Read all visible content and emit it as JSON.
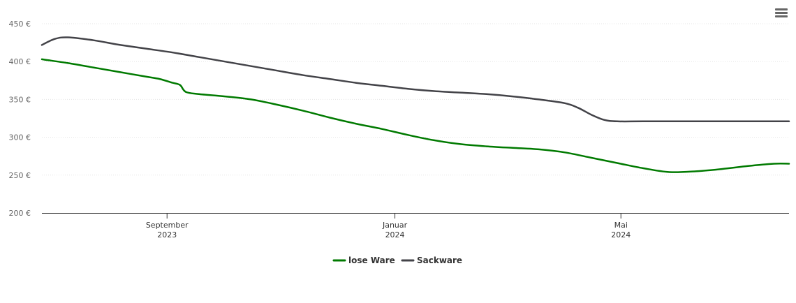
{
  "chart_data": {
    "type": "line",
    "title": "",
    "xlabel": "",
    "ylabel": "",
    "ylim": [
      200,
      450
    ],
    "y_ticks": [
      "200 €",
      "250 €",
      "300 €",
      "350 €",
      "400 €",
      "450 €"
    ],
    "y_tick_values": [
      200,
      250,
      300,
      350,
      400,
      450
    ],
    "x_range": [
      "2023-06-26",
      "2024-07-30"
    ],
    "x_ticks": [
      {
        "date": "2023-09-01",
        "line1": "September",
        "line2": "2023"
      },
      {
        "date": "2024-01-01",
        "line1": "Januar",
        "line2": "2024"
      },
      {
        "date": "2024-05-01",
        "line1": "Mai",
        "line2": "2024"
      }
    ],
    "grid": true,
    "legend_position": "bottom-center",
    "series": [
      {
        "name": "lose Ware",
        "color": "#007a00",
        "points": [
          [
            "2023-06-26",
            403
          ],
          [
            "2023-07-10",
            398
          ],
          [
            "2023-07-24",
            392
          ],
          [
            "2023-08-07",
            386
          ],
          [
            "2023-08-21",
            380
          ],
          [
            "2023-08-28",
            377
          ],
          [
            "2023-09-04",
            372
          ],
          [
            "2023-09-08",
            369
          ],
          [
            "2023-09-11",
            360
          ],
          [
            "2023-09-18",
            357
          ],
          [
            "2023-10-02",
            354
          ],
          [
            "2023-10-16",
            350
          ],
          [
            "2023-10-30",
            343
          ],
          [
            "2023-11-13",
            335
          ],
          [
            "2023-11-27",
            326
          ],
          [
            "2023-12-11",
            318
          ],
          [
            "2023-12-25",
            311
          ],
          [
            "2024-01-08",
            303
          ],
          [
            "2024-01-22",
            296
          ],
          [
            "2024-02-05",
            291
          ],
          [
            "2024-02-19",
            288
          ],
          [
            "2024-03-04",
            286
          ],
          [
            "2024-03-18",
            284
          ],
          [
            "2024-04-01",
            280
          ],
          [
            "2024-04-15",
            273
          ],
          [
            "2024-04-29",
            266
          ],
          [
            "2024-05-13",
            259
          ],
          [
            "2024-05-27",
            254
          ],
          [
            "2024-06-10",
            255
          ],
          [
            "2024-06-24",
            258
          ],
          [
            "2024-07-08",
            262
          ],
          [
            "2024-07-22",
            265
          ],
          [
            "2024-07-30",
            265
          ]
        ]
      },
      {
        "name": "Sackware",
        "color": "#434348",
        "points": [
          [
            "2023-06-26",
            422
          ],
          [
            "2023-07-03",
            430
          ],
          [
            "2023-07-10",
            432
          ],
          [
            "2023-07-24",
            428
          ],
          [
            "2023-08-07",
            422
          ],
          [
            "2023-08-21",
            417
          ],
          [
            "2023-09-04",
            412
          ],
          [
            "2023-09-18",
            406
          ],
          [
            "2023-10-02",
            400
          ],
          [
            "2023-10-16",
            394
          ],
          [
            "2023-10-30",
            388
          ],
          [
            "2023-11-13",
            382
          ],
          [
            "2023-11-27",
            377
          ],
          [
            "2023-12-11",
            372
          ],
          [
            "2023-12-25",
            368
          ],
          [
            "2024-01-08",
            364
          ],
          [
            "2024-01-22",
            361
          ],
          [
            "2024-02-05",
            359
          ],
          [
            "2024-02-19",
            357
          ],
          [
            "2024-03-04",
            354
          ],
          [
            "2024-03-18",
            350
          ],
          [
            "2024-04-01",
            345
          ],
          [
            "2024-04-08",
            339
          ],
          [
            "2024-04-15",
            330
          ],
          [
            "2024-04-22",
            323
          ],
          [
            "2024-04-29",
            321
          ],
          [
            "2024-05-13",
            321
          ],
          [
            "2024-06-10",
            321
          ],
          [
            "2024-07-08",
            321
          ],
          [
            "2024-07-30",
            321
          ]
        ]
      }
    ]
  },
  "icons": {
    "menu": "hamburger-menu-icon"
  }
}
